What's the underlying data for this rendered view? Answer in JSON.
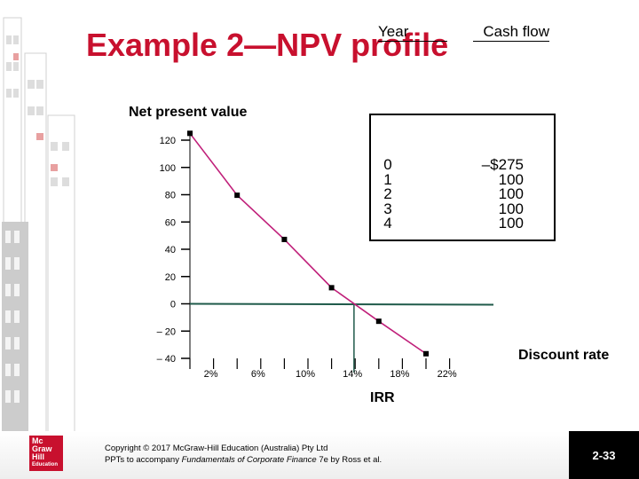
{
  "slide": {
    "title": "Example 2—NPV profile",
    "copyright_line1": "Copyright © 2017 McGraw-Hill Education (Australia) Pty Ltd",
    "copyright_line2_prefix": "PPTs to accompany ",
    "copyright_line2_book": "Fundamentals of Corporate Finance",
    "copyright_line2_suffix": " 7e by Ross et al.",
    "slide_number": "2-33",
    "logo_lines": [
      "Mc",
      "Graw",
      "Hill",
      "Education"
    ]
  },
  "cash_flow_table": {
    "year_header": "Year",
    "cash_header": "Cash flow",
    "rows": [
      {
        "year": "0",
        "cash": "–$275"
      },
      {
        "year": "1",
        "cash": "100"
      },
      {
        "year": "2",
        "cash": "100"
      },
      {
        "year": "3",
        "cash": "100"
      },
      {
        "year": "4",
        "cash": "100"
      }
    ]
  },
  "irr_label": "IRR",
  "chart_data": {
    "type": "line",
    "ylabel": "Net present value",
    "xlabel": "Discount rate",
    "ylim": [
      -40,
      120
    ],
    "xlim": [
      0,
      24
    ],
    "y_ticks": [
      120,
      100,
      80,
      60,
      40,
      20,
      0,
      -20,
      -40
    ],
    "y_tick_labels": [
      "120",
      "100",
      "80",
      "60",
      "40",
      "20",
      "0",
      "– 20",
      "– 40"
    ],
    "x_ticks": [
      2,
      6,
      10,
      14,
      18,
      22
    ],
    "x_tick_labels": [
      "2%",
      "6%",
      "10%",
      "14%",
      "18%",
      "22%"
    ],
    "series": [
      {
        "x": [
          0,
          4,
          8,
          12,
          16,
          20
        ],
        "y": [
          125,
          79.6,
          47.2,
          11.8,
          -12.8,
          -36.6
        ],
        "marker": "square",
        "line_color": "#c0207a"
      }
    ],
    "zero_line_color": "#1f5a4a",
    "irr": 13.9,
    "marker_color": "#000000"
  }
}
